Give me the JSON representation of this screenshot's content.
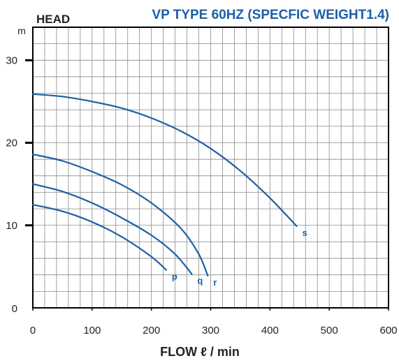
{
  "chart_data": {
    "type": "line",
    "title": "VP TYPE 60HZ (SPECFIC WEIGHT1.4)",
    "ylabel": "HEAD",
    "yunit": "m",
    "xlabel": "FLOW ℓ / min",
    "xlim": [
      0,
      600
    ],
    "ylim": [
      0,
      34
    ],
    "xticks": [
      0,
      100,
      200,
      300,
      400,
      500,
      600
    ],
    "yticks": [
      0,
      10,
      20,
      30
    ],
    "grid": true,
    "series": [
      {
        "name": "s",
        "x": [
          0,
          50,
          100,
          150,
          200,
          250,
          300,
          350,
          400,
          445
        ],
        "y": [
          25.9,
          25.6,
          25.0,
          24.2,
          23.0,
          21.4,
          19.3,
          16.6,
          13.3,
          9.9
        ]
      },
      {
        "name": "r",
        "x": [
          0,
          50,
          100,
          150,
          200,
          250,
          280,
          295
        ],
        "y": [
          18.6,
          17.8,
          16.5,
          14.9,
          12.7,
          9.6,
          6.5,
          3.9
        ]
      },
      {
        "name": "q",
        "x": [
          0,
          50,
          100,
          150,
          200,
          240,
          268
        ],
        "y": [
          15.0,
          14.1,
          12.7,
          10.9,
          8.8,
          6.5,
          4.1
        ]
      },
      {
        "name": "p",
        "x": [
          0,
          50,
          100,
          150,
          200,
          225
        ],
        "y": [
          12.5,
          11.7,
          10.4,
          8.6,
          6.2,
          4.6
        ]
      }
    ]
  },
  "colors": {
    "title": "#1c5fa6",
    "curve": "#1c5fa6",
    "text": "#222222",
    "grid": "#8a8a8a",
    "frame": "#000000"
  }
}
